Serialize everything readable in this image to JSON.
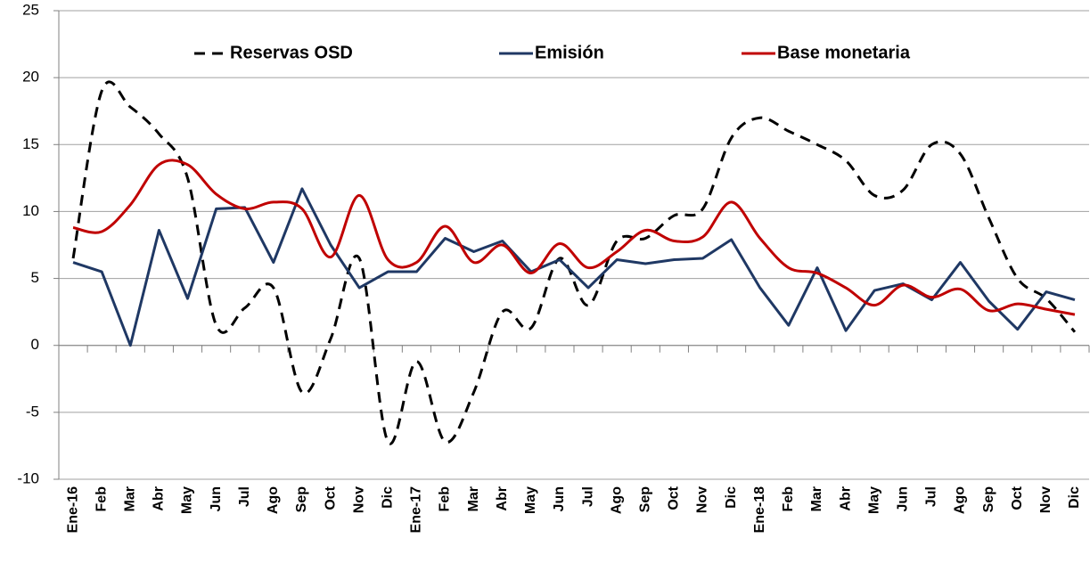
{
  "chart_data": {
    "type": "line",
    "categories": [
      "Ene-16",
      "Feb",
      "Mar",
      "Abr",
      "May",
      "Jun",
      "Jul",
      "Ago",
      "Sep",
      "Oct",
      "Nov",
      "Dic",
      "Ene-17",
      "Feb",
      "Mar",
      "Abr",
      "May",
      "Jun",
      "Jul",
      "Ago",
      "Sep",
      "Oct",
      "Nov",
      "Dic",
      "Ene-18",
      "Feb",
      "Mar",
      "Abr",
      "May",
      "Jun",
      "Jul",
      "Ago",
      "Sep",
      "Oct",
      "Nov",
      "Dic"
    ],
    "series": [
      {
        "name": "Reservas OSD",
        "color": "#000000",
        "dash": true,
        "smooth": true,
        "values": [
          6.5,
          19,
          17.8,
          15.8,
          12.5,
          1.5,
          2.8,
          4.3,
          -3.5,
          0.5,
          6.5,
          -7.2,
          -1.2,
          -7.2,
          -3.5,
          2.5,
          1.3,
          6.5,
          3.0,
          7.8,
          8.0,
          9.7,
          10.2,
          15.5,
          17.0,
          16.0,
          15.0,
          13.8,
          11.2,
          11.6,
          15.0,
          14.3,
          9.5,
          5.0,
          3.5,
          1.0
        ]
      },
      {
        "name": "Emisión",
        "color": "#1f3864",
        "dash": false,
        "smooth": false,
        "values": [
          6.2,
          5.5,
          0,
          8.6,
          3.5,
          10.2,
          10.3,
          6.2,
          11.7,
          7.5,
          4.3,
          5.5,
          5.5,
          8.0,
          7.0,
          7.8,
          5.5,
          6.4,
          4.3,
          6.4,
          6.1,
          6.4,
          6.5,
          7.9,
          4.3,
          1.5,
          5.8,
          1.1,
          4.1,
          4.6,
          3.4,
          6.2,
          3.3,
          1.2,
          4.0,
          3.4
        ]
      },
      {
        "name": "Base monetaria",
        "color": "#c00000",
        "dash": false,
        "smooth": true,
        "values": [
          8.8,
          8.5,
          10.5,
          13.5,
          13.5,
          11.3,
          10.2,
          10.7,
          10.2,
          6.6,
          11.2,
          6.4,
          6.2,
          8.9,
          6.2,
          7.5,
          5.4,
          7.6,
          5.8,
          7.0,
          8.6,
          7.8,
          8.1,
          10.7,
          8.0,
          5.8,
          5.4,
          4.3,
          3.0,
          4.5,
          3.6,
          4.2,
          2.6,
          3.1,
          2.7,
          2.3
        ]
      }
    ],
    "ylim": [
      -10,
      25
    ],
    "yticks": [
      -10,
      -5,
      0,
      5,
      10,
      15,
      20,
      25
    ],
    "grid": true,
    "legend": "top"
  }
}
